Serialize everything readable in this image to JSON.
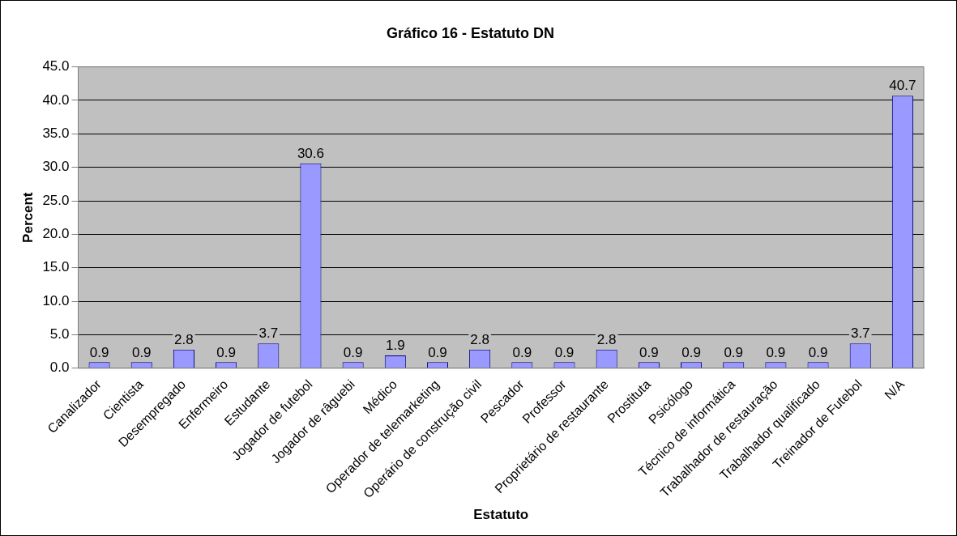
{
  "chart_data": {
    "type": "bar",
    "title": "Gráfico 16 - Estatuto DN",
    "xlabel": "Estatuto",
    "ylabel": "Percent",
    "categories": [
      "Canalizador",
      "Cientista",
      "Desempregado",
      "Enfermeiro",
      "Estudante",
      "Jogador de futebol",
      "Jogador de râguebi",
      "Médico",
      "Operador de telemarketing",
      "Operário de construção civil",
      "Pescador",
      "Professor",
      "Proprietário de restaurante",
      "Prostituta",
      "Psicólogo",
      "Técnico de informática",
      "Trabalhador de restauração",
      "Trabalhador qualificado",
      "Treinador de Futebol",
      "N/A"
    ],
    "values": [
      0.9,
      0.9,
      2.8,
      0.9,
      3.7,
      30.6,
      0.9,
      1.9,
      0.9,
      2.8,
      0.9,
      0.9,
      2.8,
      0.9,
      0.9,
      0.9,
      0.9,
      0.9,
      3.7,
      40.7
    ],
    "color": "#9999ff",
    "data_labels": true,
    "grid": "y",
    "legend": false,
    "ylim": [
      0,
      45
    ],
    "yticks": [
      {
        "value": 0,
        "label": "0.0"
      },
      {
        "value": 5,
        "label": "5.0"
      },
      {
        "value": 10,
        "label": "10.0"
      },
      {
        "value": 15,
        "label": "15.0"
      },
      {
        "value": 20,
        "label": "20.0"
      },
      {
        "value": 25,
        "label": "25.0"
      },
      {
        "value": 30,
        "label": "30.0"
      },
      {
        "value": 35,
        "label": "35.0"
      },
      {
        "value": 40,
        "label": "40.0"
      },
      {
        "value": 45,
        "label": "45.0"
      }
    ]
  }
}
